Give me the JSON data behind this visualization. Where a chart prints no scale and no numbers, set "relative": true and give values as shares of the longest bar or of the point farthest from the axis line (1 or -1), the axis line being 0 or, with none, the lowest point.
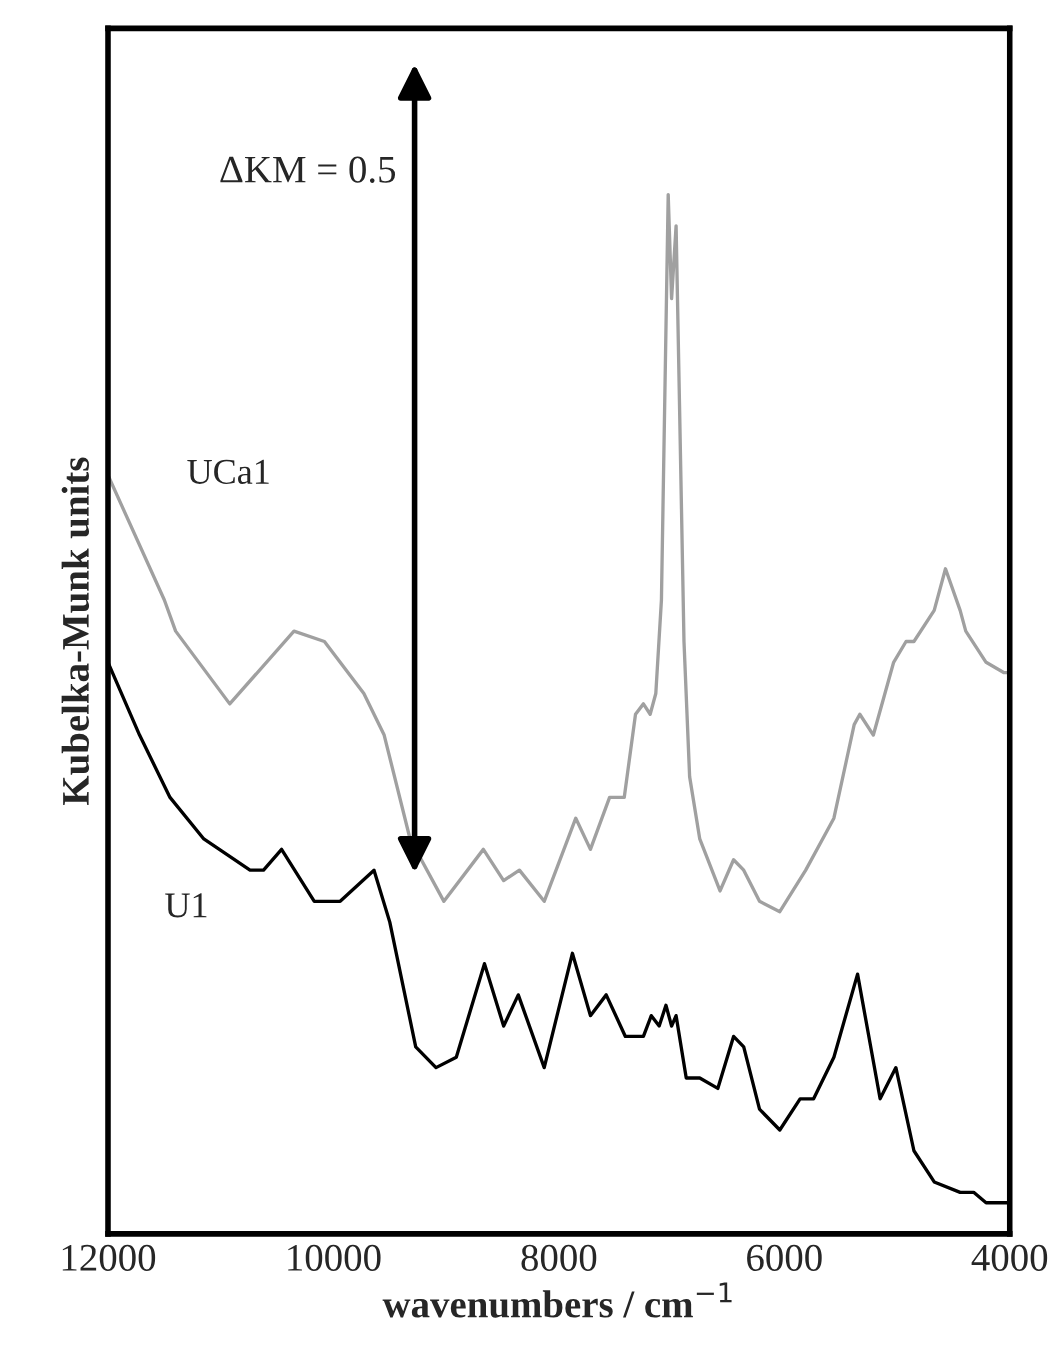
{
  "chart_data": {
    "type": "line",
    "relative": true,
    "xlabel": "wavenumbers / cm$^{−1}$",
    "ylabel": "Kubelka-Munk units",
    "annotations": [
      "ΔKM = 0.5"
    ],
    "xlim": [
      12000,
      4000
    ],
    "xticks": [
      12000,
      10000,
      8000,
      6000,
      4000
    ],
    "tick_labels": "x",
    "grid": false,
    "series": [
      {
        "name": "UCa1",
        "color": "#a0a0a0",
        "x": [
          12000,
          11500,
          11400,
          10920,
          10350,
          10080,
          9730,
          9550,
          9320,
          9020,
          8670,
          8490,
          8350,
          8130,
          7850,
          7720,
          7550,
          7420,
          7320,
          7250,
          7190,
          7140,
          7090,
          7030,
          7000,
          6960,
          6930,
          6890,
          6840,
          6750,
          6570,
          6450,
          6360,
          6220,
          6040,
          5810,
          5560,
          5380,
          5330,
          5210,
          5030,
          4920,
          4850,
          4670,
          4570,
          4440,
          4390,
          4210,
          4050,
          4000
        ],
        "values": [
          0.73,
          0.61,
          0.58,
          0.51,
          0.58,
          0.57,
          0.52,
          0.48,
          0.38,
          0.32,
          0.37,
          0.34,
          0.35,
          0.32,
          0.4,
          0.37,
          0.42,
          0.42,
          0.5,
          0.51,
          0.5,
          0.52,
          0.61,
          1.0,
          0.9,
          0.97,
          0.8,
          0.57,
          0.44,
          0.38,
          0.33,
          0.36,
          0.35,
          0.32,
          0.31,
          0.35,
          0.4,
          0.49,
          0.5,
          0.48,
          0.55,
          0.57,
          0.57,
          0.6,
          0.64,
          0.6,
          0.58,
          0.55,
          0.54,
          0.54
        ]
      },
      {
        "name": "U1",
        "color": "#000000",
        "x": [
          12000,
          11720,
          11450,
          11150,
          10740,
          10620,
          10460,
          10170,
          9940,
          9640,
          9500,
          9270,
          9090,
          8910,
          8660,
          8490,
          8360,
          8130,
          7880,
          7720,
          7580,
          7410,
          7250,
          7180,
          7110,
          7050,
          7000,
          6960,
          6870,
          6750,
          6590,
          6450,
          6360,
          6220,
          6040,
          5860,
          5740,
          5560,
          5350,
          5150,
          5010,
          4850,
          4670,
          4440,
          4320,
          4210,
          4000
        ],
        "values": [
          0.55,
          0.48,
          0.42,
          0.38,
          0.35,
          0.35,
          0.37,
          0.32,
          0.32,
          0.35,
          0.3,
          0.18,
          0.16,
          0.17,
          0.26,
          0.2,
          0.23,
          0.16,
          0.27,
          0.21,
          0.23,
          0.19,
          0.19,
          0.21,
          0.2,
          0.22,
          0.2,
          0.21,
          0.15,
          0.15,
          0.14,
          0.19,
          0.18,
          0.12,
          0.1,
          0.13,
          0.13,
          0.17,
          0.25,
          0.13,
          0.16,
          0.08,
          0.05,
          0.04,
          0.04,
          0.03,
          0.03
        ]
      }
    ]
  }
}
